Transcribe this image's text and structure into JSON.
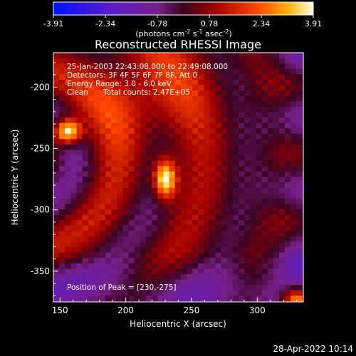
{
  "chart_data": {
    "type": "heatmap",
    "title": "Reconstructed RHESSI Image",
    "xlabel": "Heliocentric X (arcsec)",
    "ylabel": "Heliocentric Y (arcsec)",
    "xlim": [
      145,
      335
    ],
    "ylim": [
      -375,
      -172
    ],
    "xticks": [
      150,
      200,
      250,
      300
    ],
    "yticks": [
      -200,
      -250,
      -300,
      -350
    ],
    "colorbar": {
      "ticks": [
        "-3.91",
        "-2.34",
        "-0.78",
        "0.78",
        "2.34",
        "3.91"
      ],
      "range": [
        -3.91,
        3.91
      ],
      "unit_text": "(photons cm",
      "unit_exp1": "-2",
      "unit_mid": " s",
      "unit_exp2": "-1",
      "unit_mid2": " asec",
      "unit_exp3": "-2",
      "unit_close": ")"
    },
    "annotations": {
      "time_range": "25-Jan-2003 22:43:08.000 to 22:49:08.000",
      "detectors": "Detectors: 3F 4F 5F 6F 7F 8F, Att 0",
      "energy": "Energy Range: 3.0 - 6.0 keV",
      "clean": "Clean",
      "counts": "Total counts: 2.47E+05",
      "peak": "Position of Peak = [230,-275]"
    },
    "peak": [
      230,
      -275
    ],
    "secondary_source": [
      156,
      -236
    ]
  },
  "footer": {
    "timestamp": "28-Apr-2022 10:14"
  }
}
